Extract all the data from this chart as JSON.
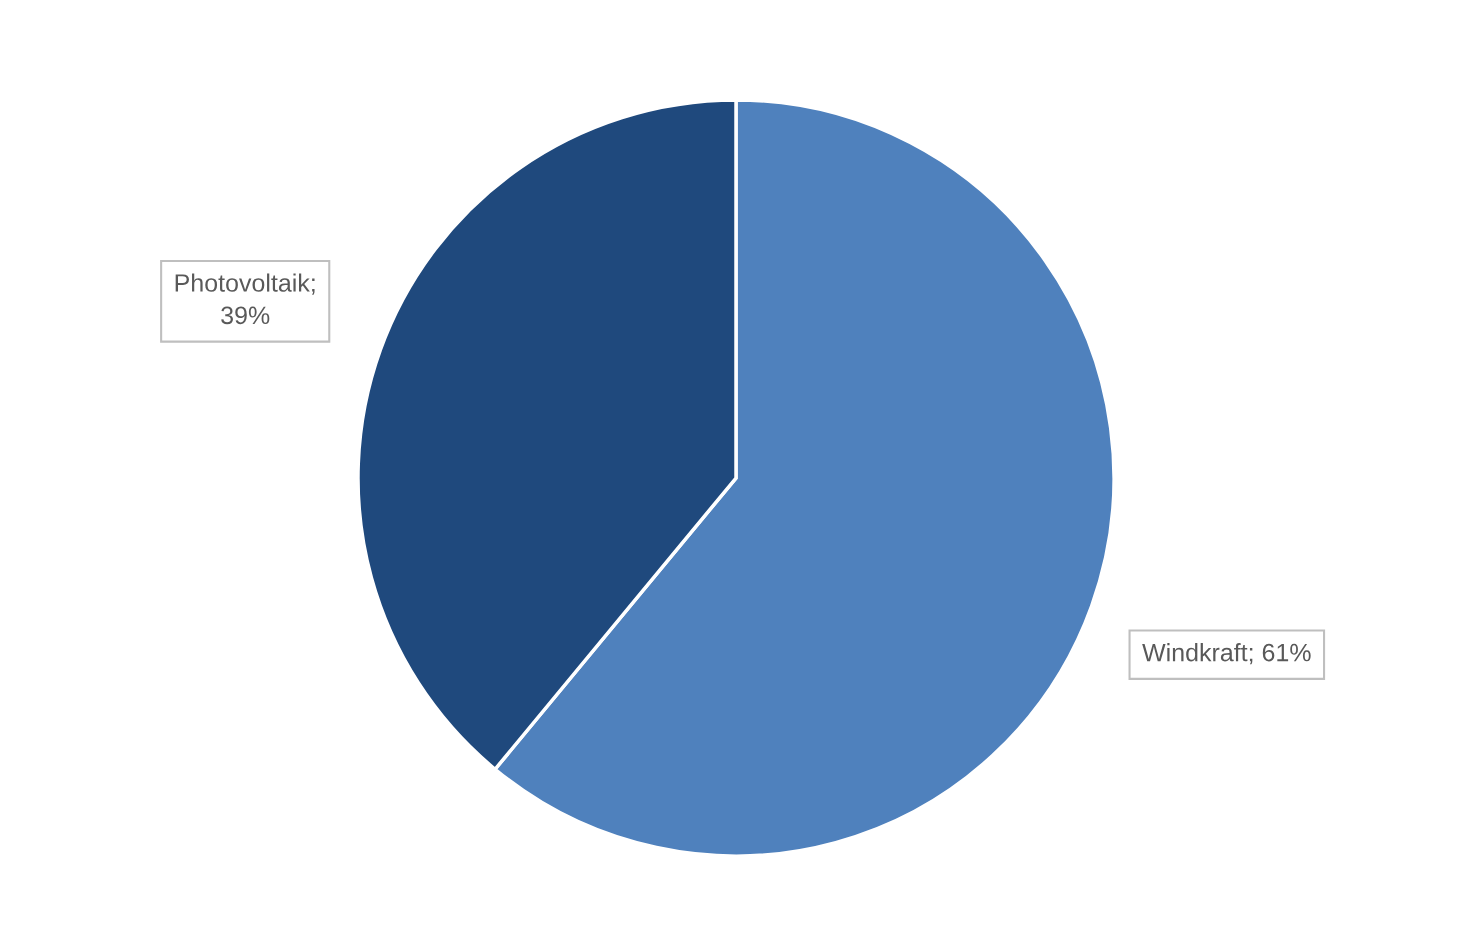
{
  "chart_data": {
    "type": "pie",
    "categories": [
      "Windkraft",
      "Photovoltaik"
    ],
    "values": [
      61,
      39
    ],
    "colors": [
      "#4f81bd",
      "#1f497d"
    ],
    "value_labels": [
      "; 61%",
      "; 39%"
    ]
  }
}
